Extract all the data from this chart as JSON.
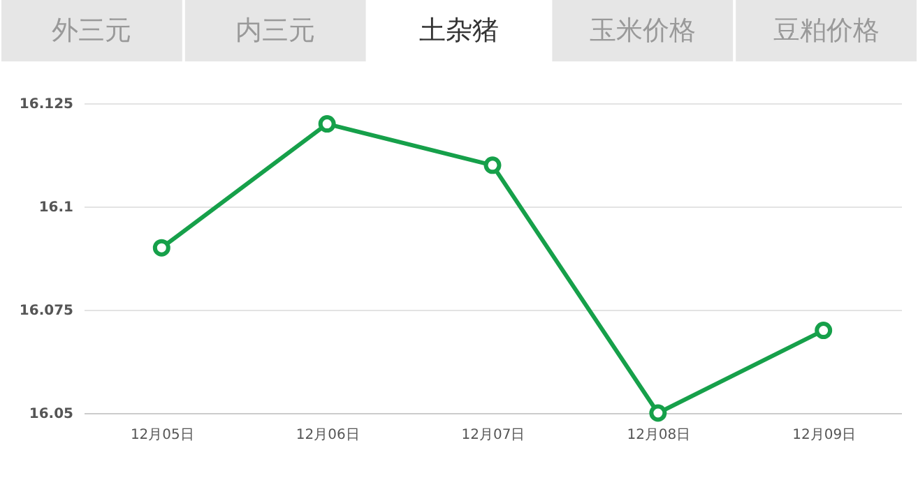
{
  "chart_data": {
    "type": "line",
    "title": "土杂猪",
    "annotations": [
      "外三元",
      "内三元",
      "玉米价格",
      "豆粕价格"
    ],
    "categories": [
      "12月05日",
      "12月06日",
      "12月07日",
      "12月08日",
      "12月09日"
    ],
    "series": [
      {
        "color": "#16a04a",
        "values": [
          16.09,
          16.12,
          16.11,
          16.05,
          16.07
        ]
      }
    ],
    "ylim": [
      16.05,
      16.125
    ],
    "yticks": [
      16.05,
      16.075,
      16.1,
      16.125
    ],
    "grid": "y",
    "marker": "circle"
  }
}
